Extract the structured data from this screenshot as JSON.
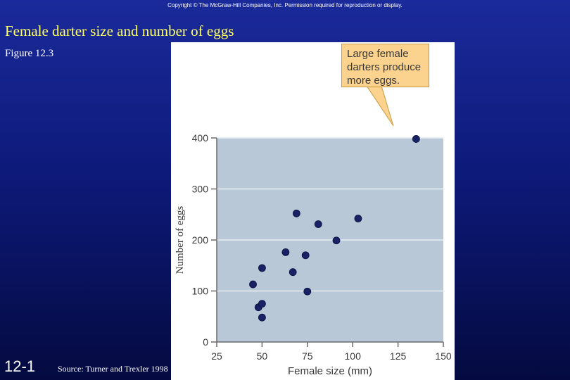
{
  "slide": {
    "copyright": "Copyright © The McGraw-Hill Companies, Inc. Permission required for reproduction or display.",
    "title": "Female darter size and number of eggs",
    "figure_label": "Figure 12.3",
    "slide_number": "12-1",
    "source": "Source: Turner and Trexler 1998"
  },
  "colors": {
    "background_top": "#1a2a9a",
    "background_bottom": "#040a40",
    "title": "#ffff66",
    "plot_area": "#b8c8d6",
    "point": "#1a2266",
    "callout": "#fbd28e"
  },
  "callout": {
    "lines": [
      "Large female",
      "darters produce",
      "more eggs."
    ]
  },
  "chart_data": {
    "type": "scatter",
    "xlabel": "Female size (mm)",
    "ylabel": "Number of eggs",
    "xlim": [
      25,
      150
    ],
    "ylim": [
      0,
      400
    ],
    "xticks": [
      25,
      50,
      75,
      100,
      125,
      150
    ],
    "yticks": [
      0,
      100,
      200,
      300,
      400
    ],
    "xtick_labels": [
      "25",
      "50",
      "75",
      "100",
      "125",
      "150"
    ],
    "ytick_labels": [
      "0",
      "100",
      "200",
      "300",
      "400"
    ],
    "grid": "horizontal",
    "points": [
      {
        "x": 45,
        "y": 113
      },
      {
        "x": 48,
        "y": 68
      },
      {
        "x": 50,
        "y": 145
      },
      {
        "x": 50,
        "y": 75
      },
      {
        "x": 50,
        "y": 48
      },
      {
        "x": 63,
        "y": 176
      },
      {
        "x": 67,
        "y": 137
      },
      {
        "x": 69,
        "y": 252
      },
      {
        "x": 74,
        "y": 170
      },
      {
        "x": 75,
        "y": 99
      },
      {
        "x": 81,
        "y": 231
      },
      {
        "x": 91,
        "y": 199
      },
      {
        "x": 103,
        "y": 242
      },
      {
        "x": 135,
        "y": 398
      }
    ]
  }
}
